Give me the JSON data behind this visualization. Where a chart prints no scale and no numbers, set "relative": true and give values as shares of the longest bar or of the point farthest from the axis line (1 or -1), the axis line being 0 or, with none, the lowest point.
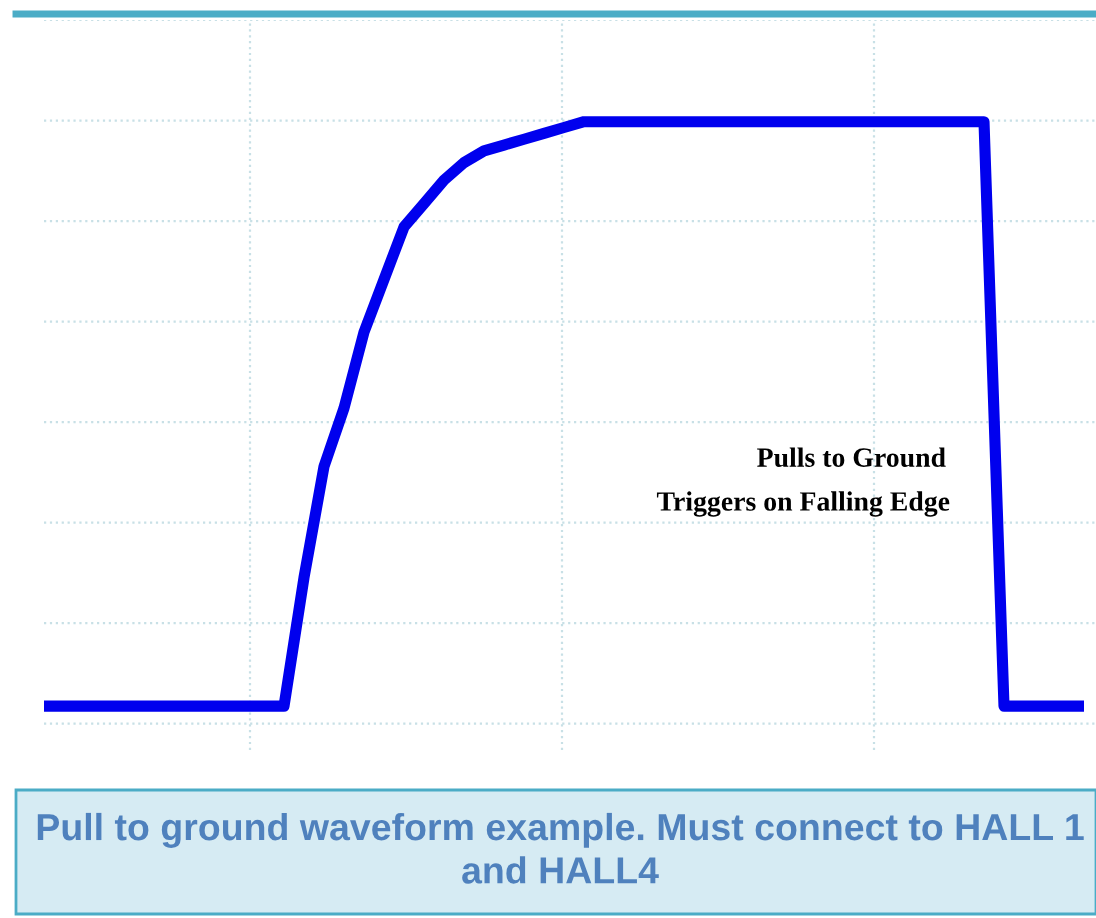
{
  "chart_data": {
    "type": "line",
    "relative": true,
    "tick_labels": false,
    "grid": true,
    "line_style": "solid",
    "marker": "none",
    "categories": [
      null,
      null,
      null,
      null,
      null,
      null,
      null,
      null,
      null,
      null,
      null,
      null,
      null,
      null,
      null,
      null,
      null,
      null,
      null,
      null,
      null,
      null,
      null,
      null,
      null,
      null,
      null,
      null,
      null,
      null,
      null,
      null,
      null,
      null,
      null,
      null,
      null,
      null,
      null,
      null,
      null,
      null,
      null,
      null,
      null,
      null,
      null,
      null,
      null,
      null,
      null,
      null,
      null
    ],
    "series": [
      {
        "color": "#0000ee",
        "values": [
          0,
          0,
          0,
          0,
          0,
          0,
          0,
          0,
          0,
          0,
          0,
          0,
          0,
          0.22,
          0.41,
          0.51,
          0.64,
          0.73,
          0.82,
          0.86,
          0.9,
          0.93,
          0.95,
          0.96,
          0.97,
          0.98,
          0.99,
          1,
          1,
          1,
          1,
          1,
          1,
          1,
          1,
          1,
          1,
          1,
          1,
          1,
          1,
          1,
          1,
          1,
          1,
          1,
          1,
          1,
          0,
          0,
          0,
          0,
          0
        ]
      }
    ],
    "annotations": [
      "Pulls to Ground",
      "Triggers on Falling Edge",
      "Pull to ground waveform example. Must connect to HALL 1 and HALL4"
    ]
  }
}
